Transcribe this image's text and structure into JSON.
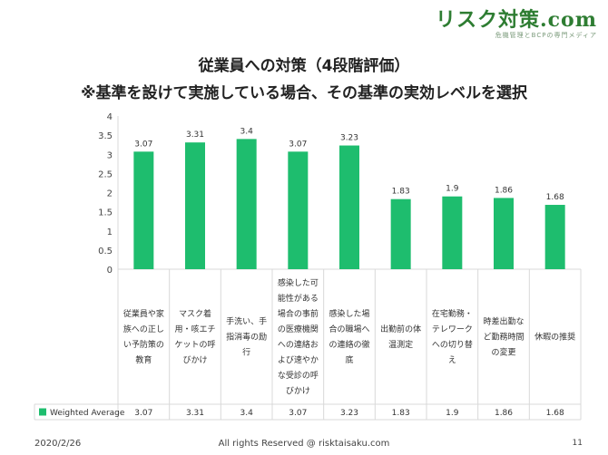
{
  "logo": {
    "text": "リスク対策.com",
    "tagline": "危機管理とBCPの専門メディア"
  },
  "header": {
    "title": "従業員への対策（4段階評価）",
    "subtitle": "※基準を設けて実施している場合、その基準の実効レベルを選択"
  },
  "footer": {
    "date": "2020/2/26",
    "copyright": "All rights Reserved @ risktaisaku.com",
    "page": "11"
  },
  "chart_data": {
    "type": "bar",
    "title": "",
    "xlabel": "",
    "ylabel": "",
    "ylim": [
      0,
      4
    ],
    "yticks": [
      "0",
      "0.5",
      "1",
      "1.5",
      "2",
      "2.5",
      "3",
      "3.5",
      "4"
    ],
    "grid": false,
    "legend": "table-row-left",
    "bar_color": "#1ebd6e",
    "categories": [
      [
        "従業員や家",
        "族への正し",
        "い予防策の",
        "教育"
      ],
      [
        "マスク着",
        "用・咳エチ",
        "ケットの呼",
        "びかけ"
      ],
      [
        "手洗い、手",
        "指消毒の励",
        "行"
      ],
      [
        "感染した可",
        "能性がある",
        "場合の事前",
        "の医療機関",
        "への連絡お",
        "よび速やか",
        "な受診の呼",
        "びかけ"
      ],
      [
        "感染した場",
        "合の職場へ",
        "の連絡の徹",
        "底"
      ],
      [
        "出勤前の体",
        "温測定"
      ],
      [
        "在宅勤務・",
        "テレワーク",
        "への切り替",
        "え"
      ],
      [
        "時差出勤な",
        "ど勤務時間",
        "の変更"
      ],
      [
        "休暇の推奨"
      ]
    ],
    "series": [
      {
        "name": "Weighted Average",
        "values": [
          3.07,
          3.31,
          3.4,
          3.07,
          3.23,
          1.83,
          1.9,
          1.86,
          1.68
        ]
      }
    ],
    "value_labels": [
      "3.07",
      "3.31",
      "3.4",
      "3.07",
      "3.23",
      "1.83",
      "1.9",
      "1.86",
      "1.68"
    ]
  }
}
